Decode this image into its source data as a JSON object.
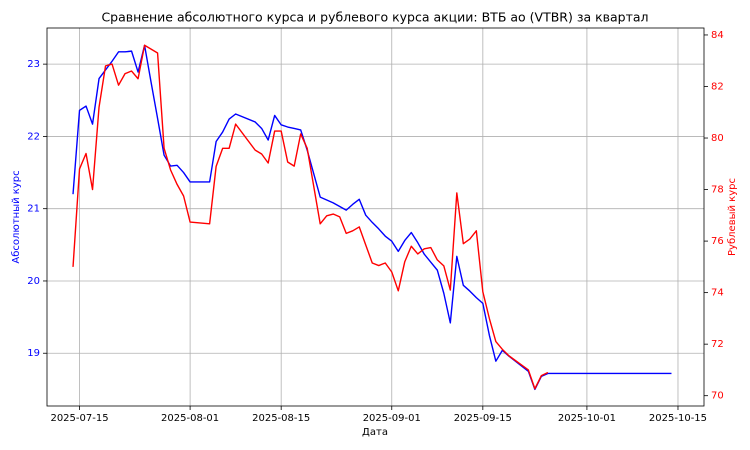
{
  "chart_data": {
    "type": "line",
    "title": "Сравнение абсолютного курса и рублевого курса акции: ВТБ ао (VTBR) за квартал",
    "xlabel": "Дата",
    "ylabel": "Абсолютный курс",
    "y2label": "Рублевый курс",
    "x": [
      "2025-07-14",
      "2025-07-15",
      "2025-07-16",
      "2025-07-17",
      "2025-07-18",
      "2025-07-19",
      "2025-07-20",
      "2025-07-21",
      "2025-07-22",
      "2025-07-23",
      "2025-07-24",
      "2025-07-25",
      "2025-07-26",
      "2025-07-27",
      "2025-07-28",
      "2025-07-29",
      "2025-07-30",
      "2025-07-31",
      "2025-08-01",
      "2025-08-04",
      "2025-08-05",
      "2025-08-06",
      "2025-08-07",
      "2025-08-08",
      "2025-08-11",
      "2025-08-12",
      "2025-08-13",
      "2025-08-14",
      "2025-08-15",
      "2025-08-16",
      "2025-08-17",
      "2025-08-18",
      "2025-08-19",
      "2025-08-21",
      "2025-08-22",
      "2025-08-23",
      "2025-08-24",
      "2025-08-25",
      "2025-08-26",
      "2025-08-27",
      "2025-08-28",
      "2025-08-29",
      "2025-08-30",
      "2025-08-31",
      "2025-09-01",
      "2025-09-02",
      "2025-09-03",
      "2025-09-04",
      "2025-09-05",
      "2025-09-06",
      "2025-09-07",
      "2025-09-08",
      "2025-09-09",
      "2025-09-10",
      "2025-09-11",
      "2025-09-12",
      "2025-09-13",
      "2025-09-14",
      "2025-09-15",
      "2025-09-16",
      "2025-09-17",
      "2025-09-18",
      "2025-09-19",
      "2025-09-22",
      "2025-09-23",
      "2025-09-24",
      "2025-09-25",
      "2025-10-14"
    ],
    "series": [
      {
        "name": "Абсолютный курс",
        "color": "#0000ff",
        "axis": "y",
        "values": [
          21.2,
          22.36,
          22.42,
          22.17,
          22.8,
          22.92,
          23.04,
          23.17,
          23.17,
          23.18,
          22.89,
          23.26,
          22.75,
          22.25,
          21.74,
          21.59,
          21.6,
          21.5,
          21.37,
          21.37,
          21.93,
          22.06,
          22.24,
          22.31,
          22.2,
          22.11,
          21.95,
          22.29,
          22.16,
          22.13,
          22.11,
          22.09,
          21.81,
          21.16,
          21.12,
          21.08,
          21.03,
          20.98,
          21.06,
          21.13,
          20.91,
          20.81,
          20.72,
          20.62,
          20.55,
          20.41,
          20.56,
          20.67,
          20.53,
          20.37,
          20.26,
          20.15,
          19.83,
          19.42,
          20.34,
          19.94,
          19.86,
          19.77,
          19.69,
          19.25,
          18.89,
          19.04,
          18.96,
          18.75,
          18.5,
          18.68,
          18.72,
          18.72
        ]
      },
      {
        "name": "Рублевый курс",
        "color": "#ff0000",
        "axis": "y2",
        "values": [
          75.0,
          78.8,
          79.4,
          78.0,
          81.2,
          82.8,
          82.87,
          82.05,
          82.5,
          82.6,
          82.3,
          83.6,
          83.45,
          83.3,
          79.6,
          78.76,
          78.2,
          77.75,
          76.74,
          76.67,
          78.9,
          79.6,
          79.6,
          80.54,
          79.53,
          79.38,
          79.03,
          80.27,
          80.27,
          79.07,
          78.91,
          80.16,
          79.6,
          76.67,
          76.98,
          77.05,
          76.94,
          76.3,
          76.4,
          76.55,
          75.85,
          75.15,
          75.05,
          75.15,
          74.8,
          74.07,
          75.2,
          75.8,
          75.5,
          75.7,
          75.75,
          75.27,
          75.04,
          74.1,
          77.87,
          75.9,
          76.08,
          76.4,
          74.03,
          73.0,
          72.1,
          71.8,
          71.55,
          71.0,
          70.27,
          70.78,
          70.9,
          null
        ]
      }
    ],
    "xlim": [
      "2025-07-10",
      "2025-10-19"
    ],
    "xticks": [
      "2025-07-15",
      "2025-08-01",
      "2025-08-15",
      "2025-09-01",
      "2025-09-15",
      "2025-10-01",
      "2025-10-15"
    ],
    "ylim": [
      18.27,
      23.5
    ],
    "yticks": [
      19,
      20,
      21,
      22,
      23
    ],
    "y2lim": [
      69.6,
      84.27
    ],
    "y2ticks": [
      70,
      72,
      74,
      76,
      78,
      80,
      82,
      84
    ],
    "grid": true
  }
}
